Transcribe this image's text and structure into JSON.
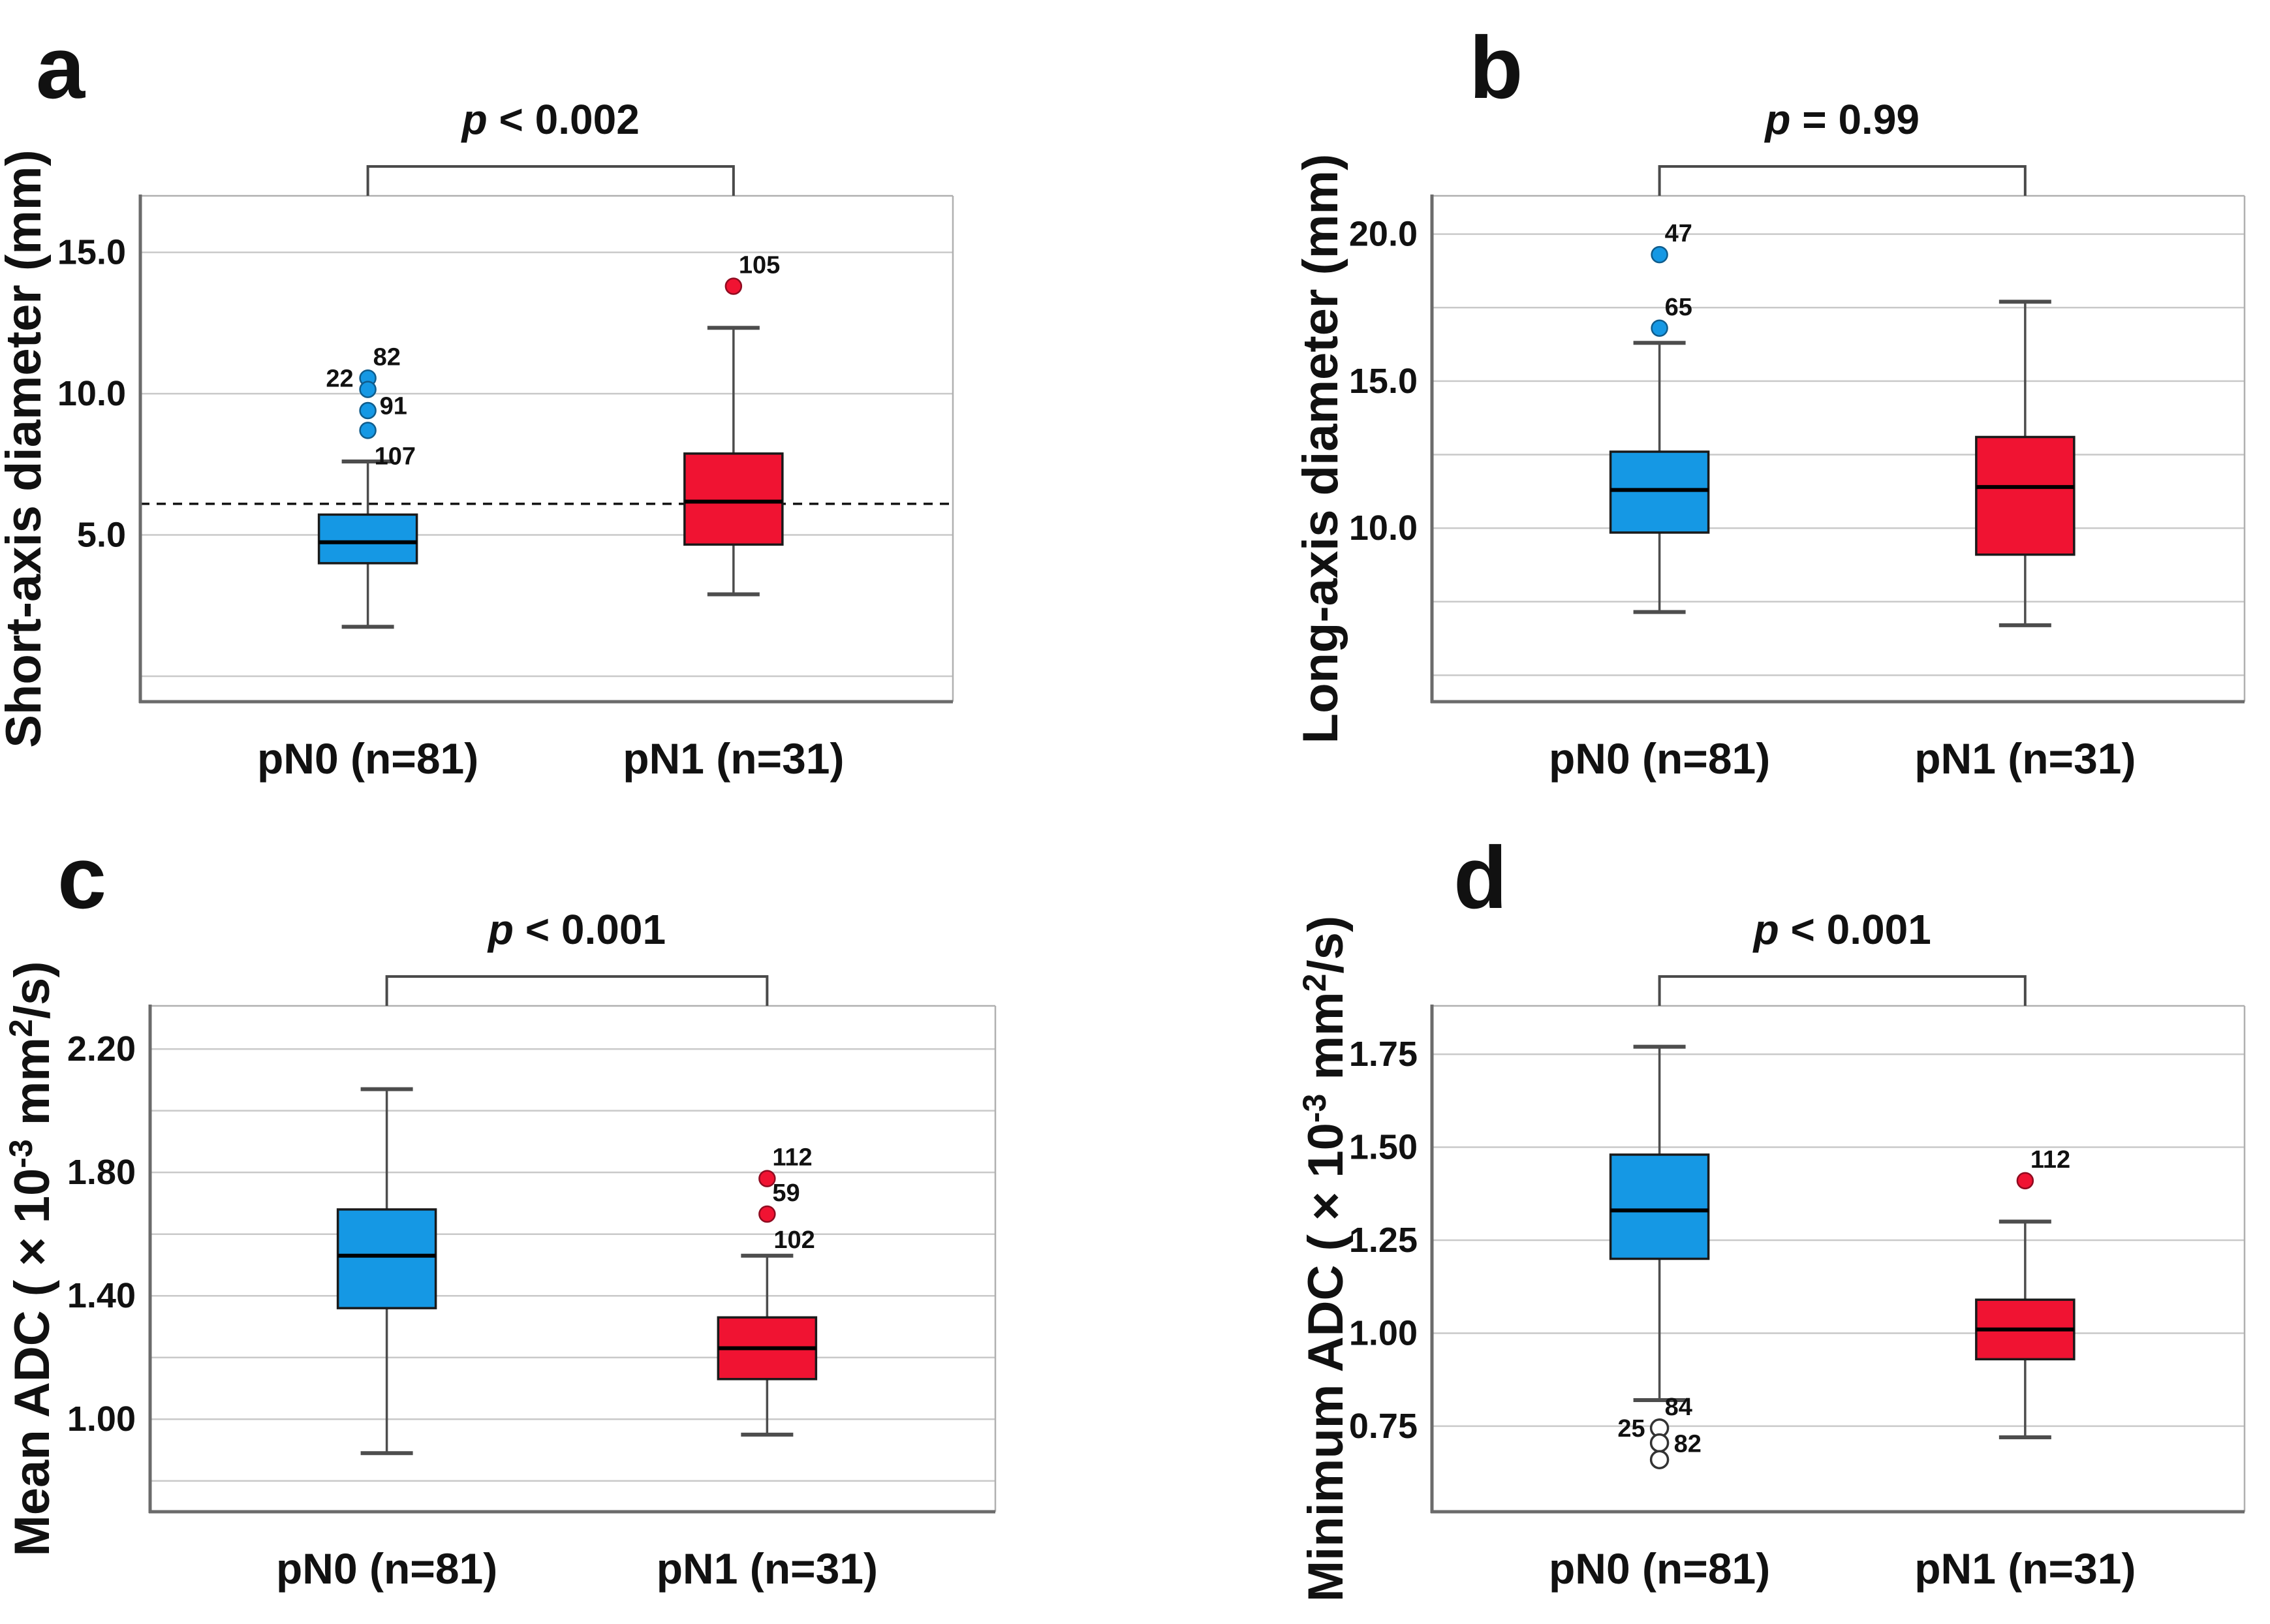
{
  "figure_title": "",
  "colors": {
    "pn0_fill": "#1598E4",
    "pn0_edge": "#0F5C8C",
    "pn1_fill": "#F01332",
    "pn1_edge": "#8F0B20",
    "gridline": "#c9c9c9",
    "axis_dark": "#6b6b6b",
    "frame_light": "#b0b0b0",
    "bracket": "#4a4a4a",
    "whisker": "#4d4d4d"
  },
  "chart_data": [
    {
      "id": "a",
      "type": "boxplot",
      "panel_letter": "a",
      "p_annotation": "p < 0.002",
      "ylabel": "Short-axis diameter (mm)",
      "ylabel_parts": [
        {
          "t": "Short-axis diameter (mm)"
        }
      ],
      "categories": [
        "pN0 (n=81)",
        "pN1 (n=31)"
      ],
      "ylim": [
        -0.9,
        17.0
      ],
      "grid_on": true,
      "gridlines": [
        0,
        5,
        10,
        15
      ],
      "ytick_labels": [
        {
          "value": 15,
          "label": "15.0"
        },
        {
          "value": 10,
          "label": "10.0"
        },
        {
          "value": 5,
          "label": "5.0"
        }
      ],
      "reference_line": 6.1,
      "series": [
        {
          "name": "pN0 (n=81)",
          "color_key": "pn0",
          "whisker_low": 1.75,
          "q1": 4.0,
          "median": 4.74,
          "q3": 5.72,
          "whisker_high": 7.6,
          "outliers": [
            {
              "value": 10.55,
              "marker": "filled",
              "labels": [
                {
                  "text": "82",
                  "side": "above"
                },
                {
                  "text": "22",
                  "side": "left"
                }
              ]
            },
            {
              "value": 10.15,
              "marker": "filled",
              "labels": [
                {
                  "text": "91",
                  "side": "below-right"
                }
              ]
            },
            {
              "value": 9.4,
              "marker": "filled",
              "labels": []
            },
            {
              "value": 8.7,
              "marker": "filled",
              "labels": [
                {
                  "text": "107",
                  "side": "below"
                }
              ]
            }
          ]
        },
        {
          "name": "pN1 (n=31)",
          "color_key": "pn1",
          "whisker_low": 2.9,
          "q1": 4.66,
          "median": 6.18,
          "q3": 7.88,
          "whisker_high": 12.33,
          "outliers": [
            {
              "value": 13.8,
              "marker": "filled",
              "labels": [
                {
                  "text": "105",
                  "side": "above"
                }
              ]
            }
          ]
        }
      ]
    },
    {
      "id": "b",
      "type": "boxplot",
      "panel_letter": "b",
      "p_annotation": "p = 0.99",
      "ylabel": "Long-axis diameter (mm)",
      "ylabel_parts": [
        {
          "t": "Long-axis diameter (mm)"
        }
      ],
      "categories": [
        "pN0 (n=81)",
        "pN1 (n=31)"
      ],
      "ylim": [
        4.1,
        21.3
      ],
      "grid_on": true,
      "gridlines": [
        5,
        7.5,
        10,
        12.5,
        15,
        17.5,
        20
      ],
      "ytick_labels": [
        {
          "value": 20,
          "label": "20.0"
        },
        {
          "value": 15,
          "label": "15.0"
        },
        {
          "value": 10,
          "label": "10.0"
        }
      ],
      "reference_line": null,
      "series": [
        {
          "name": "pN0 (n=81)",
          "color_key": "pn0",
          "whisker_low": 7.15,
          "q1": 9.85,
          "median": 11.3,
          "q3": 12.6,
          "whisker_high": 16.3,
          "outliers": [
            {
              "value": 19.3,
              "marker": "filled",
              "labels": [
                {
                  "text": "47",
                  "side": "above"
                }
              ]
            },
            {
              "value": 16.8,
              "marker": "filled",
              "labels": [
                {
                  "text": "65",
                  "side": "above"
                }
              ]
            }
          ]
        },
        {
          "name": "pN1 (n=31)",
          "color_key": "pn1",
          "whisker_low": 6.7,
          "q1": 9.1,
          "median": 11.4,
          "q3": 13.1,
          "whisker_high": 17.7,
          "outliers": []
        }
      ]
    },
    {
      "id": "c",
      "type": "boxplot",
      "panel_letter": "c",
      "p_annotation": "p < 0.001",
      "ylabel": "Mean ADC ( × 10⁻³ mm²/s)",
      "ylabel_parts": [
        {
          "t": "Mean ADC ( × 10"
        },
        {
          "t": "-3",
          "sup": true
        },
        {
          "t": " mm"
        },
        {
          "t": "2",
          "sup": true
        },
        {
          "t": "/s)"
        }
      ],
      "categories": [
        "pN0 (n=81)",
        "pN1 (n=31)"
      ],
      "ylim": [
        0.7,
        2.34
      ],
      "grid_on": true,
      "gridlines": [
        0.8,
        1.0,
        1.2,
        1.4,
        1.6,
        1.8,
        2.0,
        2.2
      ],
      "ytick_labels": [
        {
          "value": 2.2,
          "label": "2.20"
        },
        {
          "value": 1.8,
          "label": "1.80"
        },
        {
          "value": 1.4,
          "label": "1.40"
        },
        {
          "value": 1.0,
          "label": "1.00"
        }
      ],
      "reference_line": null,
      "series": [
        {
          "name": "pN0 (n=81)",
          "color_key": "pn0",
          "whisker_low": 0.89,
          "q1": 1.36,
          "median": 1.53,
          "q3": 1.68,
          "whisker_high": 2.07,
          "outliers": []
        },
        {
          "name": "pN1 (n=31)",
          "color_key": "pn1",
          "whisker_low": 0.95,
          "q1": 1.13,
          "median": 1.23,
          "q3": 1.33,
          "whisker_high": 1.53,
          "outliers": [
            {
              "value": 1.78,
              "marker": "filled",
              "labels": [
                {
                  "text": "112",
                  "side": "above"
                }
              ]
            },
            {
              "value": 1.665,
              "marker": "filled",
              "labels": [
                {
                  "text": "59",
                  "side": "above"
                },
                {
                  "text": "102",
                  "side": "below"
                }
              ]
            }
          ]
        }
      ]
    },
    {
      "id": "d",
      "type": "boxplot",
      "panel_letter": "d",
      "p_annotation": "p < 0.001",
      "ylabel": "Minimum ADC ( × 10⁻³ mm²/s)",
      "ylabel_parts": [
        {
          "t": "Minimum ADC ( × 10"
        },
        {
          "t": "-3",
          "sup": true
        },
        {
          "t": " mm"
        },
        {
          "t": "2",
          "sup": true
        },
        {
          "t": "/s)"
        }
      ],
      "categories": [
        "pN0 (n=81)",
        "pN1 (n=31)"
      ],
      "ylim": [
        0.52,
        1.88
      ],
      "grid_on": true,
      "gridlines": [
        0.75,
        1.0,
        1.25,
        1.5,
        1.75
      ],
      "ytick_labels": [
        {
          "value": 1.75,
          "label": "1.75"
        },
        {
          "value": 1.5,
          "label": "1.50"
        },
        {
          "value": 1.25,
          "label": "1.25"
        },
        {
          "value": 1.0,
          "label": "1.00"
        },
        {
          "value": 0.75,
          "label": "0.75"
        }
      ],
      "reference_line": null,
      "series": [
        {
          "name": "pN0 (n=81)",
          "color_key": "pn0",
          "whisker_low": 0.82,
          "q1": 1.2,
          "median": 1.33,
          "q3": 1.48,
          "whisker_high": 1.77,
          "outliers": [
            {
              "value": 0.745,
              "marker": "open",
              "labels": [
                {
                  "text": "84",
                  "side": "above"
                },
                {
                  "text": "25",
                  "side": "left"
                }
              ]
            },
            {
              "value": 0.705,
              "marker": "open",
              "labels": [
                {
                  "text": "82",
                  "side": "right"
                }
              ]
            },
            {
              "value": 0.66,
              "marker": "open",
              "labels": []
            }
          ]
        },
        {
          "name": "pN1 (n=31)",
          "color_key": "pn1",
          "whisker_low": 0.72,
          "q1": 0.93,
          "median": 1.01,
          "q3": 1.09,
          "whisker_high": 1.3,
          "outliers": [
            {
              "value": 1.41,
              "marker": "filled",
              "labels": [
                {
                  "text": "112",
                  "side": "above"
                }
              ]
            }
          ]
        }
      ]
    }
  ]
}
